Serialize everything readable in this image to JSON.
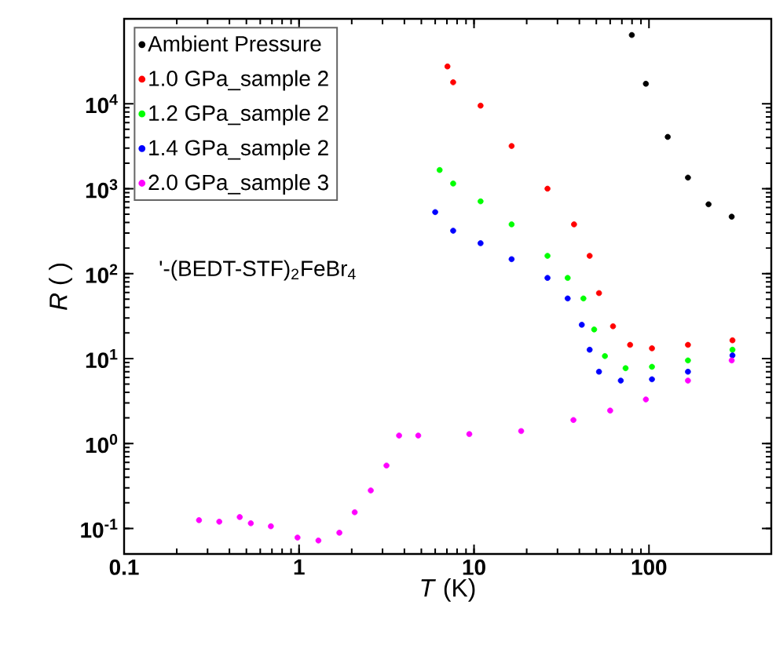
{
  "chart_data": {
    "type": "scatter",
    "xlabel": "*T* (K)",
    "ylabel": "*R* (  )",
    "log": "xy",
    "legend": "top left",
    "xlim": [
      0.1,
      500
    ],
    "ylim": [
      0.05,
      100000
    ],
    "xticks": [
      0.1,
      1,
      10,
      100
    ],
    "yticks": [
      {
        "value": 0.1,
        "label": "10$^{-1}$"
      },
      {
        "value": 1,
        "label": "10$^{0}$"
      },
      {
        "value": 10,
        "label": "10$^{1}$"
      },
      {
        "value": 100,
        "label": "10$^{2}$"
      },
      {
        "value": 1000,
        "label": "10$^{3}$"
      },
      {
        "value": 10000,
        "label": "10$^{4}$"
      }
    ],
    "annotations": [
      "'-(BEDT-STF)$_{2}$FeBr$_{4}$"
    ],
    "series": [
      {
        "name": "Ambient Pressure",
        "color": "#000000",
        "x": [
          79.8,
          96,
          128,
          167,
          219,
          297
        ],
        "values": [
          64500,
          17200,
          4070,
          1350,
          655,
          468
        ]
      },
      {
        "name": "1.0 GPa_sample 2",
        "color": "#ff0000",
        "x": [
          7.05,
          7.6,
          10.9,
          16.4,
          26.3,
          37.3,
          45.8,
          51.8,
          62.3,
          78,
          104,
          167,
          300
        ],
        "values": [
          27500,
          17900,
          9500,
          3180,
          1000,
          380,
          162,
          59,
          24,
          14.5,
          13.2,
          14.5,
          16.4
        ]
      },
      {
        "name": "1.2 GPa_sample 2",
        "color": "#00ff00",
        "x": [
          6.36,
          7.6,
          10.9,
          16.4,
          26.3,
          34.3,
          42.2,
          48.6,
          56,
          73.5,
          104,
          167,
          300
        ],
        "values": [
          1660,
          1150,
          710,
          380,
          162,
          89,
          51,
          22,
          10.7,
          7.7,
          8.0,
          9.5,
          12.7
        ]
      },
      {
        "name": "1.4 GPa_sample 2",
        "color": "#0000ff",
        "x": [
          6.0,
          7.6,
          10.9,
          16.4,
          26.3,
          34.3,
          41.3,
          45.8,
          51.8,
          69,
          104,
          167,
          300
        ],
        "values": [
          530,
          320,
          228,
          148,
          89,
          51,
          25,
          12.7,
          7.0,
          5.5,
          5.7,
          7.0,
          10.9
        ]
      },
      {
        "name": "2.0 GPa_sample 3",
        "color": "#ff00ff",
        "x": [
          0.268,
          0.35,
          0.458,
          0.53,
          0.69,
          0.98,
          1.29,
          1.7,
          2.08,
          2.57,
          3.16,
          3.73,
          4.8,
          9.4,
          18.6,
          37,
          60,
          96,
          167,
          297
        ],
        "values": [
          0.125,
          0.12,
          0.136,
          0.115,
          0.106,
          0.078,
          0.072,
          0.089,
          0.155,
          0.28,
          0.55,
          1.24,
          1.24,
          1.29,
          1.4,
          1.89,
          2.44,
          3.3,
          5.5,
          9.5
        ]
      }
    ]
  }
}
